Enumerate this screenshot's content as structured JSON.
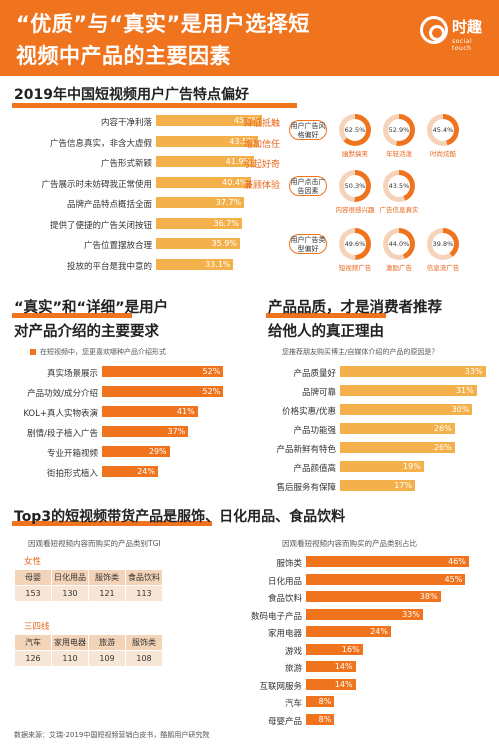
{
  "header": {
    "title_line1": "“优质”与“真实”是用户选择短",
    "title_line2": "视频中产品的主要因素",
    "logo_text": "时趣",
    "logo_sub": "social touch"
  },
  "colors": {
    "brand": "#f0741e",
    "bar_light": "#f4b04a",
    "tag": "#e8651a"
  },
  "section1": {
    "title": "2019年中国短视频用户广告特点偏好"
  },
  "section2": {
    "title_line1": "“真实”和“详细”是用户",
    "title_line2": "对产品介绍的主要要求",
    "legend": "在短视频中，您更喜欢哪种产品介绍形式"
  },
  "section3": {
    "title_line1": "产品品质，才是消费者推荐",
    "title_line2": "给他人的真正理由",
    "subtitle": "您推荐朋友购买博主/自媒体介绍的产品的原因是？"
  },
  "section4": {
    "title": "Top3的短视频带货产品是服饰、日化用品、食品饮料",
    "left_subtitle": "因观看短视频内容而购买的产品类别TGI",
    "right_subtitle": "因观看短视频内容而购买的产品类别占比"
  },
  "tgi": {
    "female_label": "女性",
    "female_headers": [
      "母婴",
      "日化用品",
      "服饰类",
      "食品饮料"
    ],
    "female_values": [
      "153",
      "130",
      "121",
      "113"
    ],
    "tier_label": "三四线",
    "tier_headers": [
      "汽车",
      "家用电器",
      "旅游",
      "服饰类"
    ],
    "tier_values": [
      "126",
      "110",
      "109",
      "108"
    ]
  },
  "donuts": {
    "groups": [
      {
        "label": "用户广告风格偏好",
        "items": [
          {
            "value": 62.5,
            "text": "62.5%",
            "name": "幽默搞笑"
          },
          {
            "value": 52.9,
            "text": "52.9%",
            "name": "年轻活泼"
          },
          {
            "value": 45.4,
            "text": "45.4%",
            "name": "时尚炫酷"
          }
        ]
      },
      {
        "label": "用户点击广告因素",
        "items": [
          {
            "value": 50.3,
            "text": "50.3%",
            "name": "内容很感兴趣"
          },
          {
            "value": 43.5,
            "text": "43.5%",
            "name": "广告信息真实"
          }
        ]
      },
      {
        "label": "用户广告类型偏好",
        "items": [
          {
            "value": 49.6,
            "text": "49.6%",
            "name": "短视频广告"
          },
          {
            "value": 44.0,
            "text": "44.0%",
            "name": "激励广告"
          },
          {
            "value": 39.8,
            "text": "39.8%",
            "name": "信息流广告"
          }
        ]
      }
    ]
  },
  "footer": {
    "source": "数据来源：艾瑞-2019中国短视频营销白皮书，酷鹅用户研究院"
  },
  "chart_data": [
    {
      "type": "bar",
      "title": "2019年中国短视频用户广告特点偏好",
      "categories": [
        "内容干净利落",
        "广告信息真实，非含大虚假",
        "广告形式新颖",
        "广告展示时未妨碍我正常使用",
        "品牌产品特点概括全面",
        "提供了便捷的广告关闭按钮",
        "广告位置摆放合理",
        "投放的平台是我中意的"
      ],
      "values": [
        45.4,
        43.5,
        41.9,
        40.4,
        37.7,
        36.7,
        35.9,
        33.1
      ],
      "value_labels": [
        "45.4%",
        "43.5%",
        "41.9%",
        "40.4%",
        "37.7%",
        "36.7%",
        "35.9%",
        "33.1%"
      ],
      "annotations": [
        "降低抵触",
        "增加信任",
        "引起好奇",
        "兼顾体验",
        "",
        "",
        "",
        ""
      ],
      "xlim": [
        0,
        50
      ]
    },
    {
      "type": "bar",
      "title": "“真实”和“详细”是用户对产品介绍的主要要求",
      "legend": "在短视频中，您更喜欢哪种产品介绍形式",
      "categories": [
        "真实场景展示",
        "产品功效/成分介绍",
        "KOL+真人实物表演",
        "剧情/段子植入广告",
        "专业开箱视频",
        "街拍形式植入"
      ],
      "values": [
        52,
        52,
        41,
        37,
        29,
        24
      ],
      "value_labels": [
        "52%",
        "52%",
        "41%",
        "37%",
        "29%",
        "24%"
      ],
      "xlim": [
        0,
        60
      ]
    },
    {
      "type": "bar",
      "title": "产品品质，才是消费者推荐给他人的真正理由",
      "subtitle": "您推荐朋友购买博主/自媒体介绍的产品的原因是？",
      "categories": [
        "产品质量好",
        "品牌可靠",
        "价格实惠/优惠",
        "产品功能强",
        "产品新鲜有特色",
        "产品颜值高",
        "售后服务有保障"
      ],
      "values": [
        33,
        31,
        30,
        26,
        26,
        19,
        17
      ],
      "value_labels": [
        "33%",
        "31%",
        "30%",
        "26%",
        "26%",
        "19%",
        "17%"
      ],
      "xlim": [
        0,
        34
      ]
    },
    {
      "type": "bar",
      "title": "因观看短视频内容而购买的产品类别占比",
      "categories": [
        "服饰类",
        "日化用品",
        "食品饮料",
        "数码电子产品",
        "家用电器",
        "游戏",
        "旅游",
        "互联网服务",
        "汽车",
        "母婴产品"
      ],
      "values": [
        46,
        45,
        38,
        33,
        24,
        16,
        14,
        14,
        8,
        8
      ],
      "value_labels": [
        "46%",
        "45%",
        "38%",
        "33%",
        "24%",
        "16%",
        "14%",
        "14%",
        "8%",
        "8%"
      ],
      "xlim": [
        0,
        48
      ]
    }
  ]
}
